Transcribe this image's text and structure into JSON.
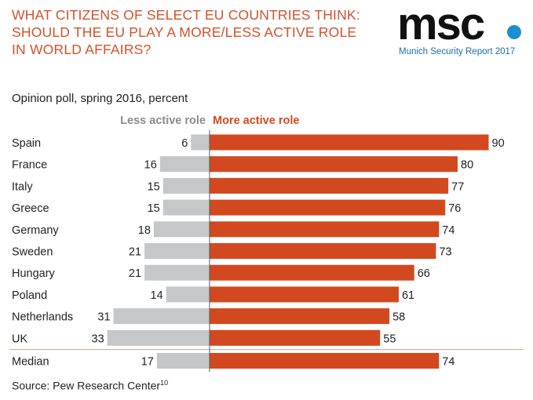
{
  "header": {
    "title_lines": [
      "WHAT CITIZENS OF SELECT EU COUNTRIES THINK:",
      "SHOULD THE EU PLAY A MORE/LESS ACTIVE ROLE",
      "IN WORLD AFFAIRS?"
    ],
    "logo_text": "msc",
    "logo_subtitle": "Munich Security Report 2017",
    "subtitle": "Opinion poll, spring 2016, percent"
  },
  "colors": {
    "title": "#d2522a",
    "less_bar": "#c6c7c9",
    "more_bar": "#d2491f",
    "less_legend": "#8a8a8a",
    "divider": "#c9a68c",
    "logo_dot": "#1b8fd0"
  },
  "chart_data": {
    "type": "bar",
    "orientation": "horizontal-diverging",
    "categories": [
      "Spain",
      "France",
      "Italy",
      "Greece",
      "Germany",
      "Sweden",
      "Hungary",
      "Poland",
      "Netherlands",
      "UK",
      "Median"
    ],
    "series": [
      {
        "name": "Less active role",
        "values": [
          6,
          16,
          15,
          15,
          18,
          21,
          21,
          14,
          31,
          33,
          17
        ]
      },
      {
        "name": "More active role",
        "values": [
          90,
          80,
          77,
          76,
          74,
          73,
          66,
          61,
          58,
          55,
          74
        ]
      }
    ],
    "xlim": [
      0,
      100
    ],
    "grid": false
  },
  "footer": {
    "source": "Source: Pew Research Center",
    "source_note": "10"
  }
}
